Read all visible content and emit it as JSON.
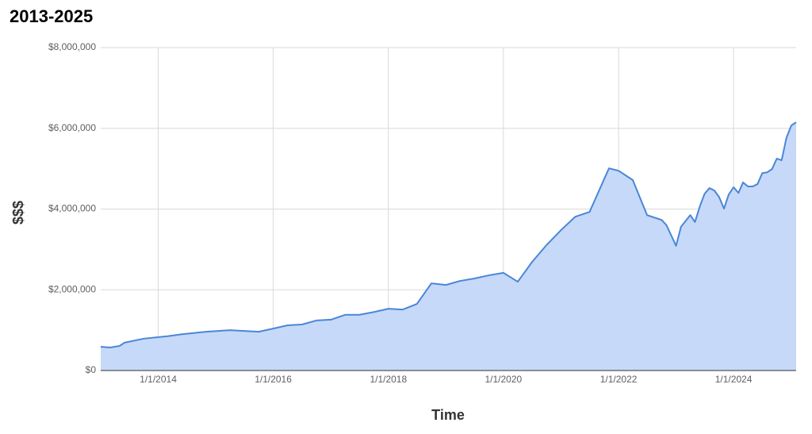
{
  "chart_data": {
    "type": "area",
    "title": "2013-2025",
    "x_label": "Time",
    "y_label": "$$$",
    "color": "#4a86d8",
    "fill": "#c6d9f8",
    "grid": true,
    "x": [
      "2013-01-01",
      "2013-03-01",
      "2013-05-01",
      "2013-06-01",
      "2013-10-01",
      "2014-03-01",
      "2014-06-01",
      "2014-11-01",
      "2015-04-01",
      "2015-10-01",
      "2016-01-01",
      "2016-04-01",
      "2016-07-01",
      "2016-10-01",
      "2017-01-01",
      "2017-04-01",
      "2017-07-01",
      "2017-10-01",
      "2018-01-01",
      "2018-04-01",
      "2018-07-01",
      "2018-10-01",
      "2019-01-01",
      "2019-04-01",
      "2019-07-01",
      "2019-10-01",
      "2020-01-01",
      "2020-04-01",
      "2020-05-01",
      "2020-07-01",
      "2020-10-01",
      "2021-01-01",
      "2021-04-01",
      "2021-07-01",
      "2021-11-01",
      "2022-01-01",
      "2022-04-01",
      "2022-07-01",
      "2022-10-01",
      "2022-11-01",
      "2023-01-01",
      "2023-02-01",
      "2023-04-01",
      "2023-05-01",
      "2023-06-01",
      "2023-07-01",
      "2023-08-01",
      "2023-09-01",
      "2023-10-01",
      "2023-11-01",
      "2023-12-01",
      "2024-01-01",
      "2024-02-01",
      "2024-03-01",
      "2024-04-01",
      "2024-05-01",
      "2024-06-01",
      "2024-07-01",
      "2024-08-01",
      "2024-09-01",
      "2024-10-01",
      "2024-11-01",
      "2024-12-01",
      "2025-01-01",
      "2025-02-01"
    ],
    "values": [
      590000,
      570000,
      610000,
      690000,
      790000,
      850000,
      900000,
      960000,
      1000000,
      960000,
      1040000,
      1120000,
      1140000,
      1240000,
      1260000,
      1380000,
      1380000,
      1450000,
      1530000,
      1510000,
      1650000,
      2160000,
      2120000,
      2220000,
      2280000,
      2360000,
      2420000,
      2200000,
      2360000,
      2690000,
      3110000,
      3480000,
      3810000,
      3930000,
      5010000,
      4950000,
      4720000,
      3850000,
      3730000,
      3600000,
      3090000,
      3560000,
      3850000,
      3680000,
      4070000,
      4380000,
      4520000,
      4460000,
      4300000,
      4010000,
      4360000,
      4540000,
      4400000,
      4660000,
      4560000,
      4560000,
      4620000,
      4890000,
      4910000,
      4990000,
      5250000,
      5210000,
      5760000,
      6070000,
      6150000
    ],
    "xlim": [
      "2013-01-01",
      "2025-02-01"
    ],
    "xticks": [
      {
        "value": "2014-01-01",
        "label": "1/1/2014"
      },
      {
        "value": "2016-01-01",
        "label": "1/1/2016"
      },
      {
        "value": "2018-01-01",
        "label": "1/1/2018"
      },
      {
        "value": "2020-01-01",
        "label": "1/1/2020"
      },
      {
        "value": "2022-01-01",
        "label": "1/1/2022"
      },
      {
        "value": "2024-01-01",
        "label": "1/1/2024"
      }
    ],
    "ylim": [
      0,
      8000000
    ],
    "yticks": [
      {
        "value": 0,
        "label": "$0"
      },
      {
        "value": 2000000,
        "label": "$2,000,000"
      },
      {
        "value": 4000000,
        "label": "$4,000,000"
      },
      {
        "value": 6000000,
        "label": "$6,000,000"
      },
      {
        "value": 8000000,
        "label": "$8,000,000"
      }
    ]
  }
}
